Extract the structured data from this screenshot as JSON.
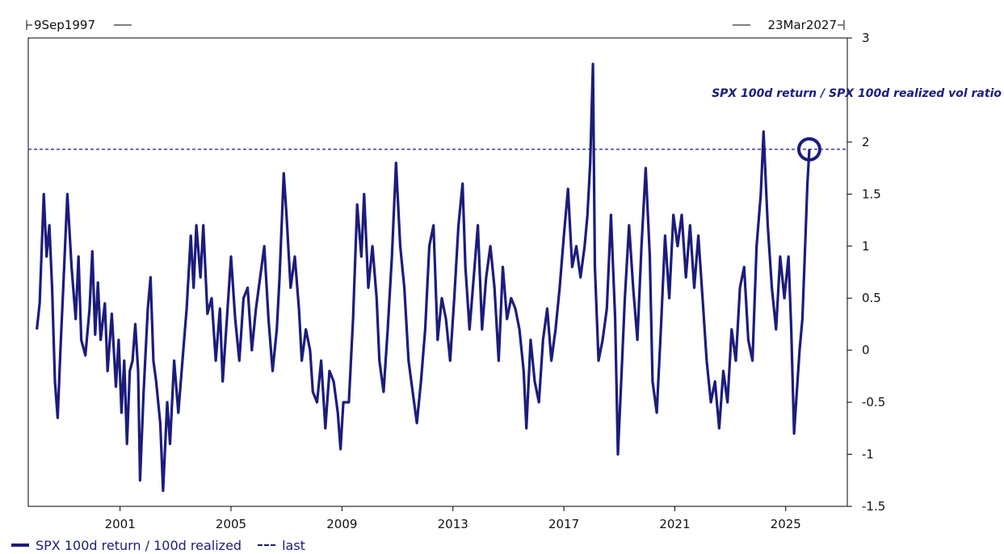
{
  "chart_data": {
    "type": "line",
    "date_range": {
      "start_label": "9Sep1997",
      "end_label": "23Mar2027"
    },
    "series_label": "SPX 100d return / SPX 100d realized vol ratio",
    "x_ticks": [
      "2001",
      "2005",
      "2009",
      "2013",
      "2017",
      "2021",
      "2025"
    ],
    "x_tick_years": [
      2001,
      2005,
      2009,
      2013,
      2017,
      2021,
      2025
    ],
    "x_range": [
      1997.69,
      2027.22
    ],
    "y_ticks": [
      "3",
      "2",
      "1.5",
      "1",
      "0.5",
      "0",
      "-0.5",
      "-1",
      "-1.5"
    ],
    "y_tick_values": [
      3,
      2,
      1.5,
      1,
      0.5,
      0,
      -0.5,
      -1,
      -1.5
    ],
    "ylim": [
      -1.5,
      3
    ],
    "last_value": 1.93,
    "grid": false,
    "colors": {
      "series": "#1c1c7c",
      "axis": "#000000"
    },
    "series": [
      {
        "name": "SPX 100d return / 100d realized",
        "points": [
          [
            1998.0,
            0.2
          ],
          [
            1998.1,
            0.45
          ],
          [
            1998.25,
            1.5
          ],
          [
            1998.35,
            0.9
          ],
          [
            1998.45,
            1.2
          ],
          [
            1998.55,
            0.6
          ],
          [
            1998.65,
            -0.3
          ],
          [
            1998.75,
            -0.65
          ],
          [
            1998.85,
            0.0
          ],
          [
            1998.95,
            0.6
          ],
          [
            1999.1,
            1.5
          ],
          [
            1999.25,
            0.8
          ],
          [
            1999.4,
            0.3
          ],
          [
            1999.5,
            0.9
          ],
          [
            1999.6,
            0.1
          ],
          [
            1999.75,
            -0.05
          ],
          [
            1999.9,
            0.4
          ],
          [
            2000.0,
            0.95
          ],
          [
            2000.1,
            0.15
          ],
          [
            2000.2,
            0.65
          ],
          [
            2000.3,
            0.1
          ],
          [
            2000.45,
            0.45
          ],
          [
            2000.55,
            -0.2
          ],
          [
            2000.7,
            0.35
          ],
          [
            2000.85,
            -0.35
          ],
          [
            2000.95,
            0.1
          ],
          [
            2001.05,
            -0.6
          ],
          [
            2001.15,
            -0.1
          ],
          [
            2001.25,
            -0.9
          ],
          [
            2001.35,
            -0.2
          ],
          [
            2001.45,
            -0.1
          ],
          [
            2001.55,
            0.25
          ],
          [
            2001.65,
            -0.2
          ],
          [
            2001.72,
            -1.25
          ],
          [
            2001.85,
            -0.4
          ],
          [
            2002.0,
            0.4
          ],
          [
            2002.1,
            0.7
          ],
          [
            2002.2,
            -0.1
          ],
          [
            2002.3,
            -0.3
          ],
          [
            2002.45,
            -0.7
          ],
          [
            2002.55,
            -1.35
          ],
          [
            2002.7,
            -0.5
          ],
          [
            2002.8,
            -0.9
          ],
          [
            2002.95,
            -0.1
          ],
          [
            2003.1,
            -0.6
          ],
          [
            2003.25,
            -0.1
          ],
          [
            2003.4,
            0.4
          ],
          [
            2003.55,
            1.1
          ],
          [
            2003.65,
            0.6
          ],
          [
            2003.75,
            1.2
          ],
          [
            2003.9,
            0.7
          ],
          [
            2004.0,
            1.2
          ],
          [
            2004.15,
            0.35
          ],
          [
            2004.3,
            0.5
          ],
          [
            2004.45,
            -0.1
          ],
          [
            2004.6,
            0.4
          ],
          [
            2004.7,
            -0.3
          ],
          [
            2004.85,
            0.3
          ],
          [
            2005.0,
            0.9
          ],
          [
            2005.15,
            0.3
          ],
          [
            2005.3,
            -0.1
          ],
          [
            2005.45,
            0.5
          ],
          [
            2005.6,
            0.6
          ],
          [
            2005.75,
            0.0
          ],
          [
            2005.9,
            0.4
          ],
          [
            2006.05,
            0.7
          ],
          [
            2006.2,
            1.0
          ],
          [
            2006.35,
            0.3
          ],
          [
            2006.5,
            -0.2
          ],
          [
            2006.65,
            0.2
          ],
          [
            2006.75,
            0.7
          ],
          [
            2006.9,
            1.7
          ],
          [
            2007.0,
            1.3
          ],
          [
            2007.15,
            0.6
          ],
          [
            2007.3,
            0.9
          ],
          [
            2007.45,
            0.4
          ],
          [
            2007.55,
            -0.1
          ],
          [
            2007.7,
            0.2
          ],
          [
            2007.85,
            0.0
          ],
          [
            2007.95,
            -0.4
          ],
          [
            2008.1,
            -0.5
          ],
          [
            2008.25,
            -0.1
          ],
          [
            2008.4,
            -0.75
          ],
          [
            2008.55,
            -0.2
          ],
          [
            2008.7,
            -0.3
          ],
          [
            2008.85,
            -0.6
          ],
          [
            2008.95,
            -0.95
          ],
          [
            2009.05,
            -0.5
          ],
          [
            2009.25,
            -0.5
          ],
          [
            2009.4,
            0.3
          ],
          [
            2009.55,
            1.4
          ],
          [
            2009.7,
            0.9
          ],
          [
            2009.8,
            1.5
          ],
          [
            2009.95,
            0.6
          ],
          [
            2010.1,
            1.0
          ],
          [
            2010.25,
            0.5
          ],
          [
            2010.35,
            -0.1
          ],
          [
            2010.5,
            -0.4
          ],
          [
            2010.65,
            0.2
          ],
          [
            2010.8,
            0.9
          ],
          [
            2010.95,
            1.8
          ],
          [
            2011.1,
            1.0
          ],
          [
            2011.25,
            0.6
          ],
          [
            2011.4,
            -0.1
          ],
          [
            2011.55,
            -0.4
          ],
          [
            2011.7,
            -0.7
          ],
          [
            2011.85,
            -0.3
          ],
          [
            2012.0,
            0.2
          ],
          [
            2012.15,
            1.0
          ],
          [
            2012.3,
            1.2
          ],
          [
            2012.45,
            0.1
          ],
          [
            2012.6,
            0.5
          ],
          [
            2012.75,
            0.3
          ],
          [
            2012.9,
            -0.1
          ],
          [
            2013.05,
            0.5
          ],
          [
            2013.2,
            1.2
          ],
          [
            2013.35,
            1.6
          ],
          [
            2013.45,
            0.8
          ],
          [
            2013.6,
            0.2
          ],
          [
            2013.75,
            0.7
          ],
          [
            2013.9,
            1.2
          ],
          [
            2014.05,
            0.2
          ],
          [
            2014.2,
            0.7
          ],
          [
            2014.35,
            1.0
          ],
          [
            2014.5,
            0.6
          ],
          [
            2014.65,
            -0.1
          ],
          [
            2014.8,
            0.8
          ],
          [
            2014.95,
            0.3
          ],
          [
            2015.1,
            0.5
          ],
          [
            2015.25,
            0.4
          ],
          [
            2015.4,
            0.2
          ],
          [
            2015.55,
            -0.2
          ],
          [
            2015.65,
            -0.75
          ],
          [
            2015.8,
            0.1
          ],
          [
            2015.95,
            -0.3
          ],
          [
            2016.1,
            -0.5
          ],
          [
            2016.25,
            0.1
          ],
          [
            2016.4,
            0.4
          ],
          [
            2016.55,
            -0.1
          ],
          [
            2016.7,
            0.2
          ],
          [
            2016.85,
            0.6
          ],
          [
            2017.0,
            1.1
          ],
          [
            2017.15,
            1.55
          ],
          [
            2017.3,
            0.8
          ],
          [
            2017.45,
            1.0
          ],
          [
            2017.6,
            0.7
          ],
          [
            2017.75,
            1.0
          ],
          [
            2017.85,
            1.3
          ],
          [
            2017.95,
            1.8
          ],
          [
            2018.05,
            2.75
          ],
          [
            2018.12,
            0.8
          ],
          [
            2018.25,
            -0.1
          ],
          [
            2018.4,
            0.1
          ],
          [
            2018.55,
            0.4
          ],
          [
            2018.7,
            1.3
          ],
          [
            2018.85,
            0.3
          ],
          [
            2018.95,
            -1.0
          ],
          [
            2019.05,
            -0.4
          ],
          [
            2019.2,
            0.5
          ],
          [
            2019.35,
            1.2
          ],
          [
            2019.5,
            0.6
          ],
          [
            2019.65,
            0.1
          ],
          [
            2019.8,
            1.0
          ],
          [
            2019.95,
            1.75
          ],
          [
            2020.1,
            0.9
          ],
          [
            2020.2,
            -0.3
          ],
          [
            2020.35,
            -0.6
          ],
          [
            2020.5,
            0.2
          ],
          [
            2020.65,
            1.1
          ],
          [
            2020.8,
            0.5
          ],
          [
            2020.95,
            1.3
          ],
          [
            2021.1,
            1.0
          ],
          [
            2021.25,
            1.3
          ],
          [
            2021.4,
            0.7
          ],
          [
            2021.55,
            1.2
          ],
          [
            2021.7,
            0.6
          ],
          [
            2021.85,
            1.1
          ],
          [
            2022.0,
            0.5
          ],
          [
            2022.15,
            -0.1
          ],
          [
            2022.3,
            -0.5
          ],
          [
            2022.45,
            -0.3
          ],
          [
            2022.6,
            -0.75
          ],
          [
            2022.75,
            -0.2
          ],
          [
            2022.9,
            -0.5
          ],
          [
            2023.05,
            0.2
          ],
          [
            2023.2,
            -0.1
          ],
          [
            2023.35,
            0.6
          ],
          [
            2023.5,
            0.8
          ],
          [
            2023.65,
            0.1
          ],
          [
            2023.8,
            -0.1
          ],
          [
            2023.95,
            1.0
          ],
          [
            2024.1,
            1.5
          ],
          [
            2024.2,
            2.1
          ],
          [
            2024.35,
            1.2
          ],
          [
            2024.5,
            0.6
          ],
          [
            2024.65,
            0.2
          ],
          [
            2024.8,
            0.9
          ],
          [
            2024.95,
            0.5
          ],
          [
            2025.1,
            0.9
          ],
          [
            2025.2,
            0.2
          ],
          [
            2025.3,
            -0.8
          ],
          [
            2025.4,
            -0.4
          ],
          [
            2025.5,
            0.0
          ],
          [
            2025.6,
            0.3
          ],
          [
            2025.7,
            1.0
          ],
          [
            2025.78,
            1.6
          ],
          [
            2025.85,
            1.93
          ]
        ]
      }
    ]
  },
  "legend": {
    "items": [
      {
        "label": "SPX 100d return / 100d realized"
      },
      {
        "label": "last"
      }
    ]
  }
}
